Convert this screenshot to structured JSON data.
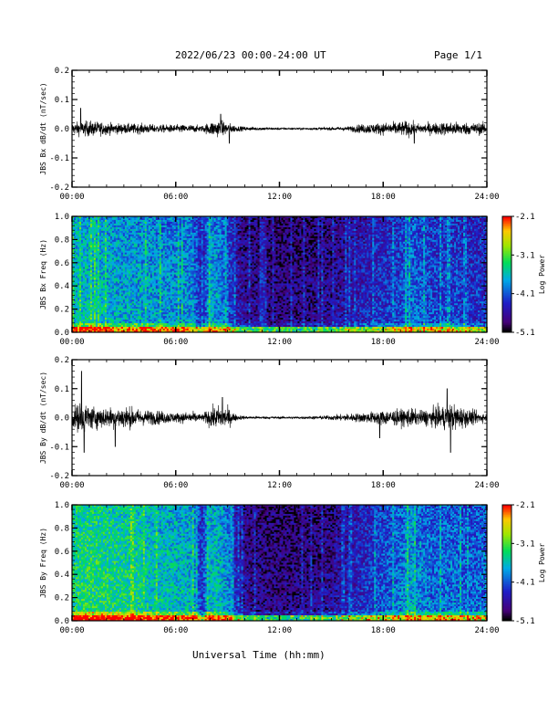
{
  "header": {
    "title": "2022/06/23  00:00-24:00 UT",
    "page": "Page 1/1"
  },
  "xaxis_label": "Universal Time (hh:mm)",
  "colors": {
    "trace": "#000000",
    "frame": "#000000",
    "background": "#ffffff"
  },
  "chart_data": [
    {
      "type": "line",
      "ylabel": "JBS Bx dB/dt (nT/sec)",
      "ylim": [
        -0.2,
        0.2
      ],
      "yticks": [
        "0.2",
        "0.1",
        "0.0",
        "-0.1",
        "-0.2"
      ],
      "xlim": [
        0,
        24
      ],
      "xticks": [
        "00:00",
        "06:00",
        "12:00",
        "18:00",
        "24:00"
      ],
      "envelope_hours": [
        0,
        1,
        2,
        3,
        4,
        5,
        6,
        7,
        7.5,
        8,
        8.5,
        9,
        9.5,
        10,
        11,
        12,
        13,
        14,
        15,
        16,
        16.5,
        17,
        18,
        19,
        19.5,
        20,
        21,
        22,
        23,
        24
      ],
      "envelope_amplitude": [
        0.03,
        0.04,
        0.03,
        0.025,
        0.025,
        0.02,
        0.02,
        0.02,
        0.015,
        0.035,
        0.045,
        0.03,
        0.015,
        0.01,
        0.008,
        0.006,
        0.005,
        0.006,
        0.008,
        0.012,
        0.02,
        0.025,
        0.03,
        0.035,
        0.04,
        0.025,
        0.03,
        0.035,
        0.03,
        0.03
      ],
      "peaks": [
        {
          "x": 0.5,
          "y": 0.07
        },
        {
          "x": 8.6,
          "y": 0.05
        },
        {
          "x": 9.1,
          "y": -0.05
        },
        {
          "x": 19.8,
          "y": -0.05
        }
      ]
    },
    {
      "type": "heatmap",
      "ylabel": "JBS Bx Freq (Hz)",
      "ylim": [
        0,
        1.0
      ],
      "yticks": [
        "1.0",
        "0.8",
        "0.6",
        "0.4",
        "0.2",
        "0.0"
      ],
      "xlim": [
        0,
        24
      ],
      "xticks": [
        "00:00",
        "06:00",
        "12:00",
        "18:00",
        "24:00"
      ],
      "colorbar": {
        "label": "Log Power",
        "range": [
          -5.1,
          -2.1
        ],
        "ticks": [
          "-2.1",
          "-3.1",
          "-4.1",
          "-5.1"
        ]
      },
      "activity_hours": [
        0,
        1,
        2,
        3,
        4,
        5,
        6,
        7,
        7.5,
        8,
        8.5,
        9,
        9.5,
        10,
        11,
        12,
        13,
        14,
        15,
        16,
        17,
        18,
        19,
        19.5,
        20,
        21,
        22,
        23,
        24
      ],
      "activity_level": [
        0.6,
        0.62,
        0.58,
        0.55,
        0.55,
        0.52,
        0.5,
        0.5,
        0.25,
        0.55,
        0.5,
        0.4,
        0.22,
        0.15,
        0.12,
        0.1,
        0.1,
        0.12,
        0.14,
        0.2,
        0.25,
        0.3,
        0.35,
        0.45,
        0.4,
        0.35,
        0.35,
        0.3,
        0.3
      ]
    },
    {
      "type": "line",
      "ylabel": "JBS By dB/dt (nT/sec)",
      "ylim": [
        -0.2,
        0.2
      ],
      "yticks": [
        "0.2",
        "0.1",
        "0.0",
        "-0.1",
        "-0.2"
      ],
      "xlim": [
        0,
        24
      ],
      "xticks": [
        "00:00",
        "06:00",
        "12:00",
        "18:00",
        "24:00"
      ],
      "envelope_hours": [
        0,
        0.5,
        1,
        2,
        3,
        4,
        5,
        6,
        7,
        7.5,
        8,
        8.5,
        9,
        9.5,
        10,
        11,
        12,
        13,
        14,
        15,
        16,
        17,
        18,
        19,
        19.5,
        20,
        21,
        22,
        23,
        24
      ],
      "envelope_amplitude": [
        0.05,
        0.08,
        0.06,
        0.05,
        0.06,
        0.04,
        0.035,
        0.025,
        0.03,
        0.015,
        0.05,
        0.06,
        0.05,
        0.015,
        0.008,
        0.007,
        0.006,
        0.006,
        0.008,
        0.012,
        0.02,
        0.025,
        0.04,
        0.04,
        0.05,
        0.035,
        0.05,
        0.07,
        0.04,
        0.02
      ],
      "peaks": [
        {
          "x": 0.55,
          "y": 0.16
        },
        {
          "x": 0.7,
          "y": -0.12
        },
        {
          "x": 2.5,
          "y": -0.1
        },
        {
          "x": 8.7,
          "y": 0.07
        },
        {
          "x": 17.8,
          "y": -0.07
        },
        {
          "x": 21.9,
          "y": -0.12
        },
        {
          "x": 21.7,
          "y": 0.1
        }
      ]
    },
    {
      "type": "heatmap",
      "ylabel": "JBS By Freq (Hz)",
      "ylim": [
        0,
        1.0
      ],
      "yticks": [
        "1.0",
        "0.8",
        "0.6",
        "0.4",
        "0.2",
        "0.0"
      ],
      "xlim": [
        0,
        24
      ],
      "xticks": [
        "00:00",
        "06:00",
        "12:00",
        "18:00",
        "24:00"
      ],
      "colorbar": {
        "label": "Log Power",
        "range": [
          -5.1,
          -2.1
        ],
        "ticks": [
          "-2.1",
          "-3.1",
          "-4.1",
          "-5.1"
        ]
      },
      "activity_hours": [
        0,
        1,
        2,
        3,
        4,
        5,
        6,
        7,
        7.5,
        8,
        8.5,
        9,
        9.5,
        10,
        11,
        12,
        13,
        14,
        15,
        16,
        17,
        18,
        19,
        19.5,
        20,
        21,
        22,
        23,
        24
      ],
      "activity_level": [
        0.72,
        0.75,
        0.72,
        0.7,
        0.68,
        0.62,
        0.6,
        0.58,
        0.3,
        0.62,
        0.6,
        0.5,
        0.25,
        0.15,
        0.12,
        0.1,
        0.1,
        0.12,
        0.15,
        0.22,
        0.3,
        0.38,
        0.45,
        0.55,
        0.5,
        0.42,
        0.45,
        0.4,
        0.45
      ]
    }
  ]
}
